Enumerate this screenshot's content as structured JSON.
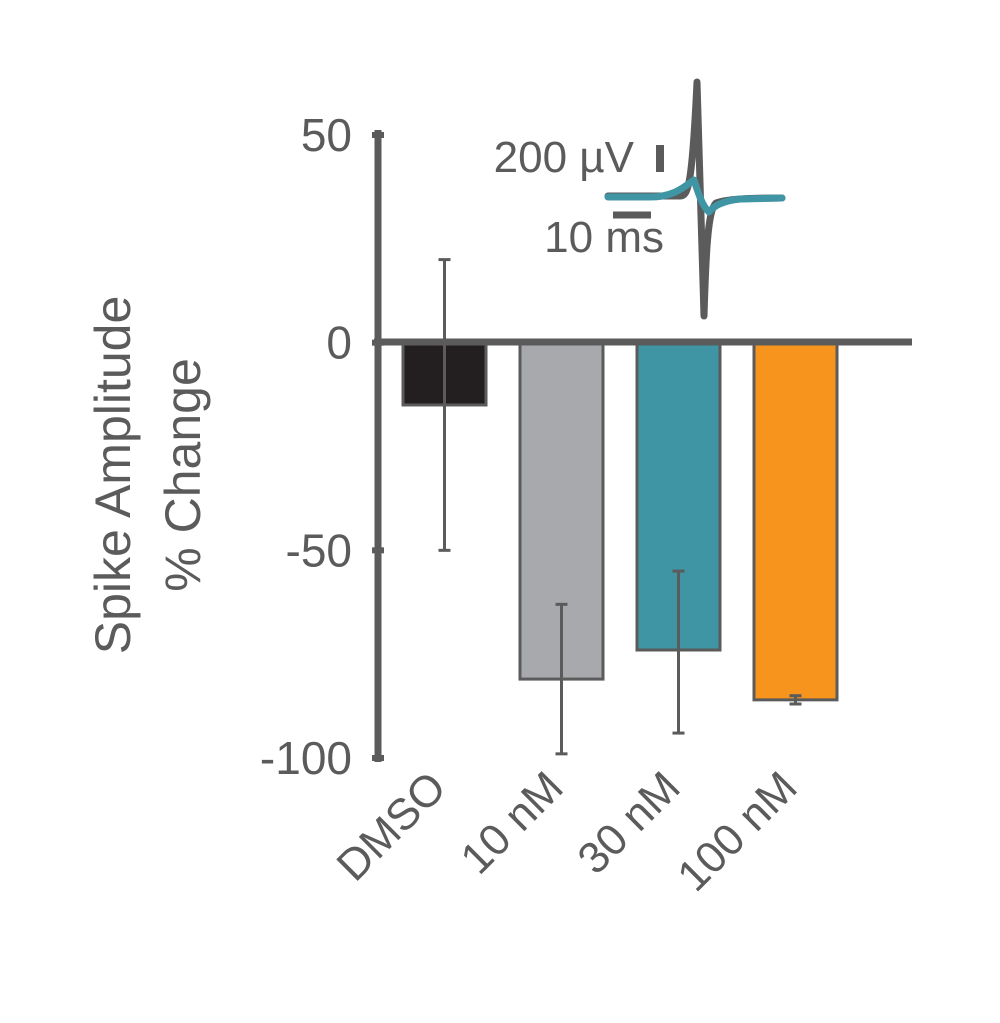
{
  "chart_data": {
    "type": "bar",
    "title": "",
    "xlabel": "",
    "ylabel": [
      "Spike Amplitude",
      "% Change"
    ],
    "ylim": [
      -100,
      50
    ],
    "yticks": [
      50,
      0,
      -50,
      -100
    ],
    "ytick_labels": [
      "50",
      "0",
      "-50",
      "-100"
    ],
    "categories": [
      "DMSO",
      "10 nM",
      "30 nM",
      "100 nM"
    ],
    "values": [
      -15,
      -81,
      -74,
      -86
    ],
    "error_low": [
      -50,
      -99,
      -94,
      -87
    ],
    "error_high": [
      20,
      -63,
      -55,
      -85
    ],
    "colors": [
      "#231f20",
      "#a7a9ac",
      "#3f95a4",
      "#f7941d"
    ],
    "grid": false,
    "legend": "none",
    "inset": {
      "voltage_scale_label": "200 µV",
      "time_scale_label": "10 ms",
      "trace_colors": [
        "#5b5b5b",
        "#3f95a4"
      ]
    }
  }
}
